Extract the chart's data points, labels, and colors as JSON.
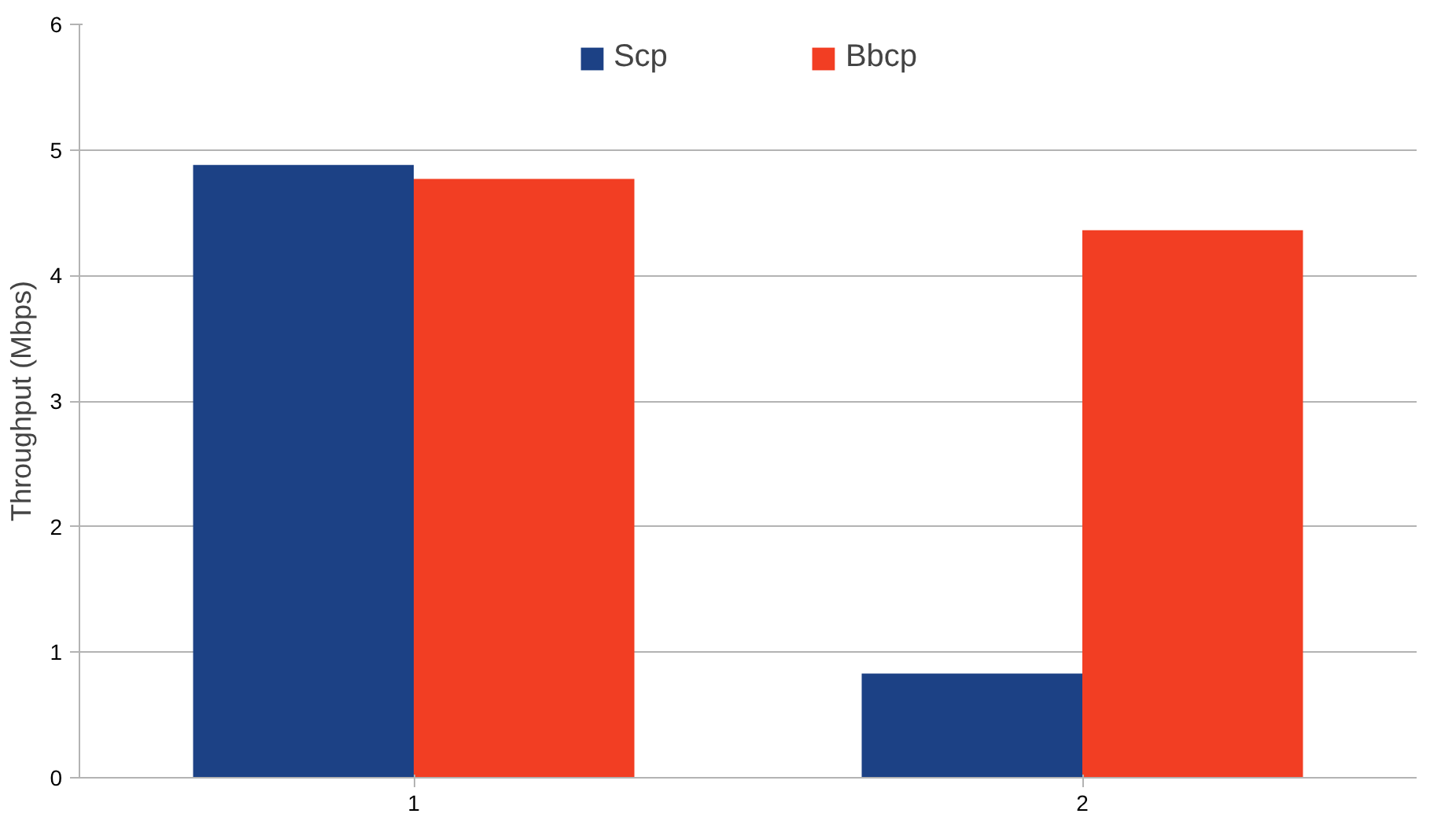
{
  "chart_data": {
    "type": "bar",
    "ylabel": "Throughput (Mbps)",
    "categories": [
      "1",
      "2"
    ],
    "series": [
      {
        "name": "Scp",
        "color": "#1c4185",
        "values": [
          4.88,
          0.83
        ]
      },
      {
        "name": "Bbcp",
        "color": "#f23e23",
        "values": [
          4.77,
          4.36
        ]
      }
    ],
    "ylim": [
      0,
      6
    ],
    "yticks": [
      0,
      1,
      2,
      3,
      4,
      5,
      6
    ],
    "grid": "y",
    "legend": "top"
  }
}
